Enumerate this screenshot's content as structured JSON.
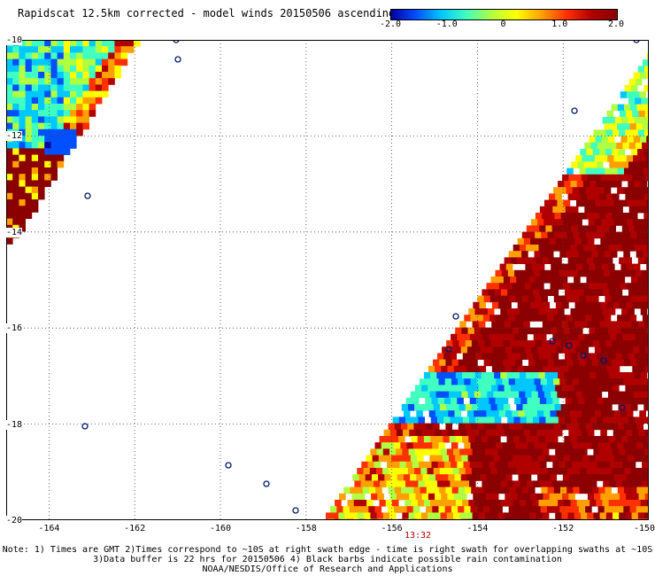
{
  "title": "Rapidscat 12.5km corrected - model winds 20150506 ascending",
  "colorbar": {
    "labels": [
      "-2.0",
      "-1.0",
      "0",
      "1.0",
      "2.0"
    ],
    "range": [
      -2.0,
      2.0
    ],
    "colors": [
      "#0000a0",
      "#0050ff",
      "#00c8ff",
      "#40ffc0",
      "#b0ff40",
      "#ffff00",
      "#ffa000",
      "#ff3000",
      "#b00000",
      "#8b0000"
    ]
  },
  "chart_data": {
    "type": "heatmap",
    "title": "Rapidscat 12.5km corrected - model winds 20150506 ascending",
    "variable": "wind speed difference (corrected - model)",
    "value_range": [
      -2.0,
      2.0
    ],
    "x_axis": {
      "ticks": [
        "-164",
        "-162",
        "-160",
        "-158",
        "-156",
        "-154",
        "-152",
        "-150"
      ],
      "range": [
        -165.0,
        -150.0
      ]
    },
    "y_axis": {
      "ticks": [
        "-10",
        "-12",
        "-14",
        "-16",
        "-18",
        "-20"
      ],
      "range": [
        -20.0,
        -10.0
      ]
    },
    "grid": "dotted",
    "swaths": [
      {
        "region": "upper-left swath edge",
        "dominant_values": "-2.0 to 0 (blue/cyan), with +2.0 (dark red) near -12 to -14"
      },
      {
        "region": "lower-right swath",
        "dominant_values": "+1.0 to +2.0 (dark red/orange), with -1.0 to -2.0 (blue) band near -17 to -18"
      }
    ],
    "swath_time": "13:32"
  },
  "axes": {
    "lon_labels": [
      "-164",
      "-162",
      "-160",
      "-158",
      "-156",
      "-154",
      "-152",
      "-150"
    ],
    "lat_labels": [
      "-10",
      "-12",
      "-14",
      "-16",
      "-18",
      "-20"
    ]
  },
  "time_label": "13:32",
  "notes": [
    "Note: 1) Times are GMT 2)Times correspond to ~10S at right swath edge - time is right swath for overlapping swaths at ~10S",
    "3)Data buffer is 22 hrs for 20150506 4) Black barbs indicate possible rain contamination",
    "NOAA/NESDIS/Office of Research and Applications"
  ]
}
